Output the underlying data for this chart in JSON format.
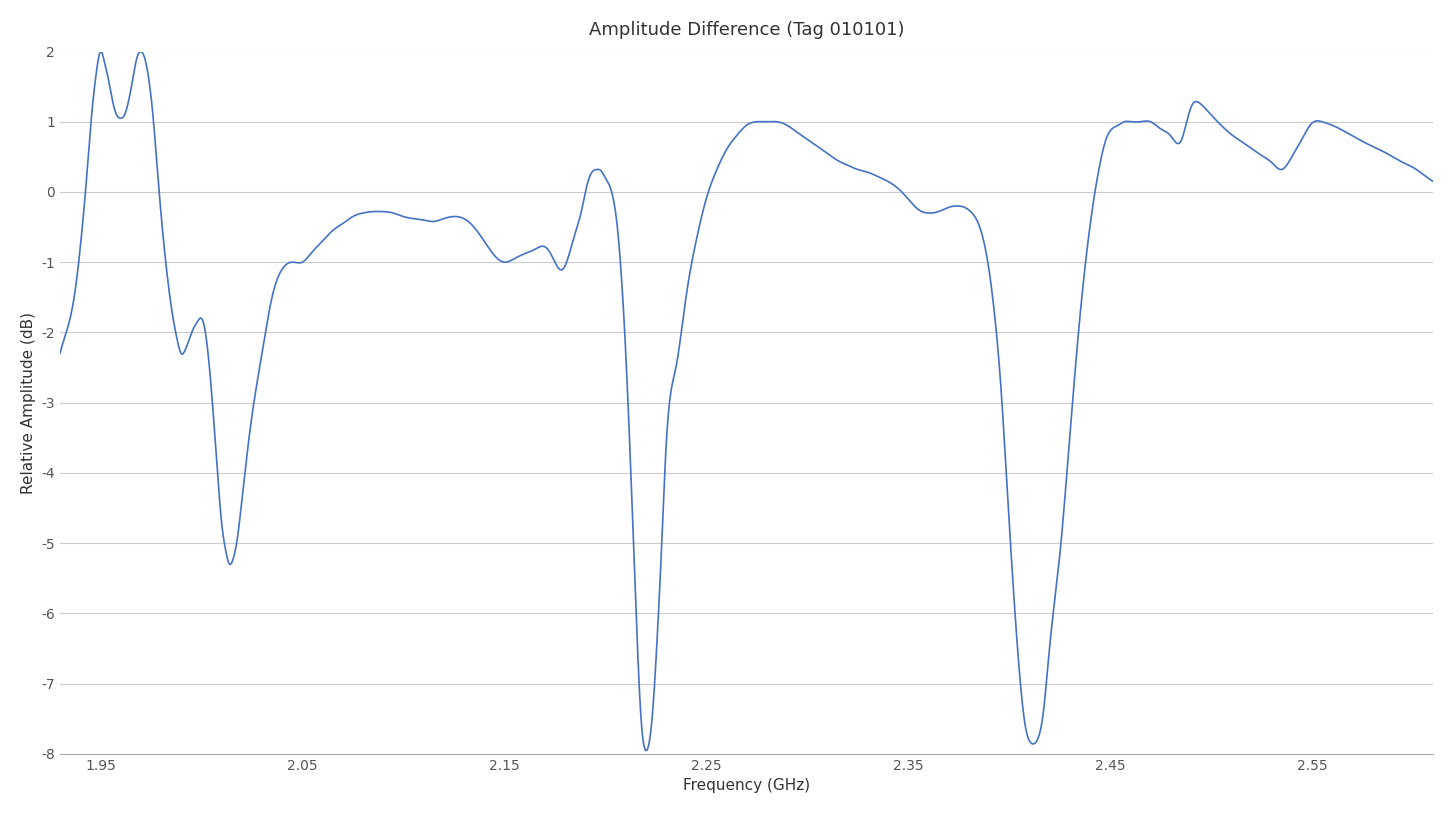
{
  "title": "Amplitude Difference (Tag 010101)",
  "xlabel": "Frequency (GHz)",
  "ylabel": "Relative Amplitude (dB)",
  "line_color": "#4472C4",
  "background_color": "#ffffff",
  "grid_color": "#cccccc",
  "xlim": [
    1.93,
    2.61
  ],
  "ylim": [
    -8,
    2
  ],
  "xticks": [
    1.95,
    2.05,
    2.15,
    2.25,
    2.35,
    2.45,
    2.55
  ],
  "yticks": [
    -8,
    -7,
    -6,
    -5,
    -4,
    -3,
    -2,
    -1,
    0,
    1,
    2
  ],
  "title_fontsize": 13,
  "label_fontsize": 11,
  "tick_fontsize": 10,
  "keypoints_x": [
    1.93,
    1.932,
    1.935,
    1.938,
    1.94,
    1.942,
    1.944,
    1.946,
    1.948,
    1.95,
    1.952,
    1.954,
    1.956,
    1.958,
    1.96,
    1.962,
    1.964,
    1.966,
    1.968,
    1.97,
    1.972,
    1.974,
    1.976,
    1.978,
    1.98,
    1.982,
    1.984,
    1.986,
    1.988,
    1.99,
    1.992,
    1.994,
    1.996,
    1.998,
    2.0,
    2.002,
    2.004,
    2.006,
    2.008,
    2.01,
    2.012,
    2.014,
    2.016,
    2.018,
    2.02,
    2.025,
    2.03,
    2.035,
    2.04,
    2.045,
    2.05,
    2.055,
    2.06,
    2.065,
    2.07,
    2.075,
    2.08,
    2.085,
    2.09,
    2.095,
    2.1,
    2.105,
    2.11,
    2.115,
    2.12,
    2.125,
    2.13,
    2.135,
    2.14,
    2.145,
    2.15,
    2.155,
    2.16,
    2.165,
    2.17,
    2.173,
    2.176,
    2.179,
    2.182,
    2.185,
    2.188,
    2.191,
    2.194,
    2.196,
    2.198,
    2.2,
    2.202,
    2.204,
    2.206,
    2.208,
    2.21,
    2.212,
    2.214,
    2.216,
    2.218,
    2.22,
    2.222,
    2.224,
    2.226,
    2.228,
    2.23,
    2.235,
    2.24,
    2.245,
    2.25,
    2.255,
    2.26,
    2.265,
    2.27,
    2.275,
    2.28,
    2.285,
    2.29,
    2.295,
    2.3,
    2.305,
    2.31,
    2.315,
    2.32,
    2.325,
    2.33,
    2.335,
    2.34,
    2.345,
    2.35,
    2.355,
    2.36,
    2.365,
    2.37,
    2.375,
    2.378,
    2.381,
    2.384,
    2.387,
    2.39,
    2.393,
    2.396,
    2.399,
    2.402,
    2.405,
    2.408,
    2.411,
    2.414,
    2.417,
    2.42,
    2.425,
    2.43,
    2.435,
    2.44,
    2.445,
    2.448,
    2.451,
    2.454,
    2.457,
    2.46,
    2.465,
    2.47,
    2.475,
    2.48,
    2.485,
    2.49,
    2.495,
    2.5,
    2.505,
    2.51,
    2.515,
    2.52,
    2.525,
    2.53,
    2.535,
    2.54,
    2.545,
    2.55,
    2.555,
    2.56,
    2.565,
    2.57,
    2.575,
    2.58,
    2.585,
    2.59,
    2.595,
    2.6,
    2.605,
    2.61
  ],
  "keypoints_y": [
    -2.3,
    -2.1,
    -1.8,
    -1.3,
    -0.8,
    -0.2,
    0.5,
    1.2,
    1.7,
    2.0,
    1.85,
    1.6,
    1.3,
    1.1,
    1.05,
    1.1,
    1.3,
    1.6,
    1.9,
    2.0,
    1.9,
    1.6,
    1.1,
    0.4,
    -0.3,
    -0.9,
    -1.4,
    -1.8,
    -2.1,
    -2.3,
    -2.25,
    -2.1,
    -1.95,
    -1.85,
    -1.8,
    -2.0,
    -2.5,
    -3.2,
    -4.0,
    -4.7,
    -5.1,
    -5.3,
    -5.2,
    -4.9,
    -4.4,
    -3.2,
    -2.3,
    -1.5,
    -1.1,
    -1.0,
    -1.0,
    -0.85,
    -0.7,
    -0.55,
    -0.45,
    -0.35,
    -0.3,
    -0.28,
    -0.28,
    -0.3,
    -0.35,
    -0.38,
    -0.4,
    -0.42,
    -0.38,
    -0.35,
    -0.38,
    -0.5,
    -0.7,
    -0.9,
    -1.0,
    -0.95,
    -0.88,
    -0.82,
    -0.78,
    -0.88,
    -1.05,
    -1.1,
    -0.9,
    -0.6,
    -0.3,
    0.1,
    0.3,
    0.32,
    0.3,
    0.2,
    0.1,
    -0.1,
    -0.5,
    -1.2,
    -2.2,
    -3.5,
    -5.0,
    -6.5,
    -7.6,
    -7.95,
    -7.8,
    -7.2,
    -6.2,
    -5.0,
    -3.7,
    -2.5,
    -1.5,
    -0.7,
    -0.1,
    0.3,
    0.6,
    0.8,
    0.95,
    1.0,
    1.0,
    1.0,
    0.95,
    0.85,
    0.75,
    0.65,
    0.55,
    0.45,
    0.38,
    0.32,
    0.28,
    0.22,
    0.15,
    0.05,
    -0.1,
    -0.25,
    -0.3,
    -0.28,
    -0.22,
    -0.2,
    -0.22,
    -0.28,
    -0.4,
    -0.65,
    -1.1,
    -1.8,
    -2.8,
    -4.2,
    -5.6,
    -6.8,
    -7.6,
    -7.85,
    -7.8,
    -7.4,
    -6.5,
    -5.2,
    -3.5,
    -1.8,
    -0.5,
    0.4,
    0.75,
    0.9,
    0.95,
    1.0,
    1.0,
    1.0,
    1.0,
    0.9,
    0.8,
    0.72,
    1.2,
    1.25,
    1.1,
    0.95,
    0.82,
    0.72,
    0.62,
    0.52,
    0.42,
    0.32,
    0.5,
    0.75,
    0.98,
    1.0,
    0.95,
    0.88,
    0.8,
    0.72,
    0.65,
    0.58,
    0.5,
    0.42,
    0.35,
    0.25,
    0.15
  ]
}
